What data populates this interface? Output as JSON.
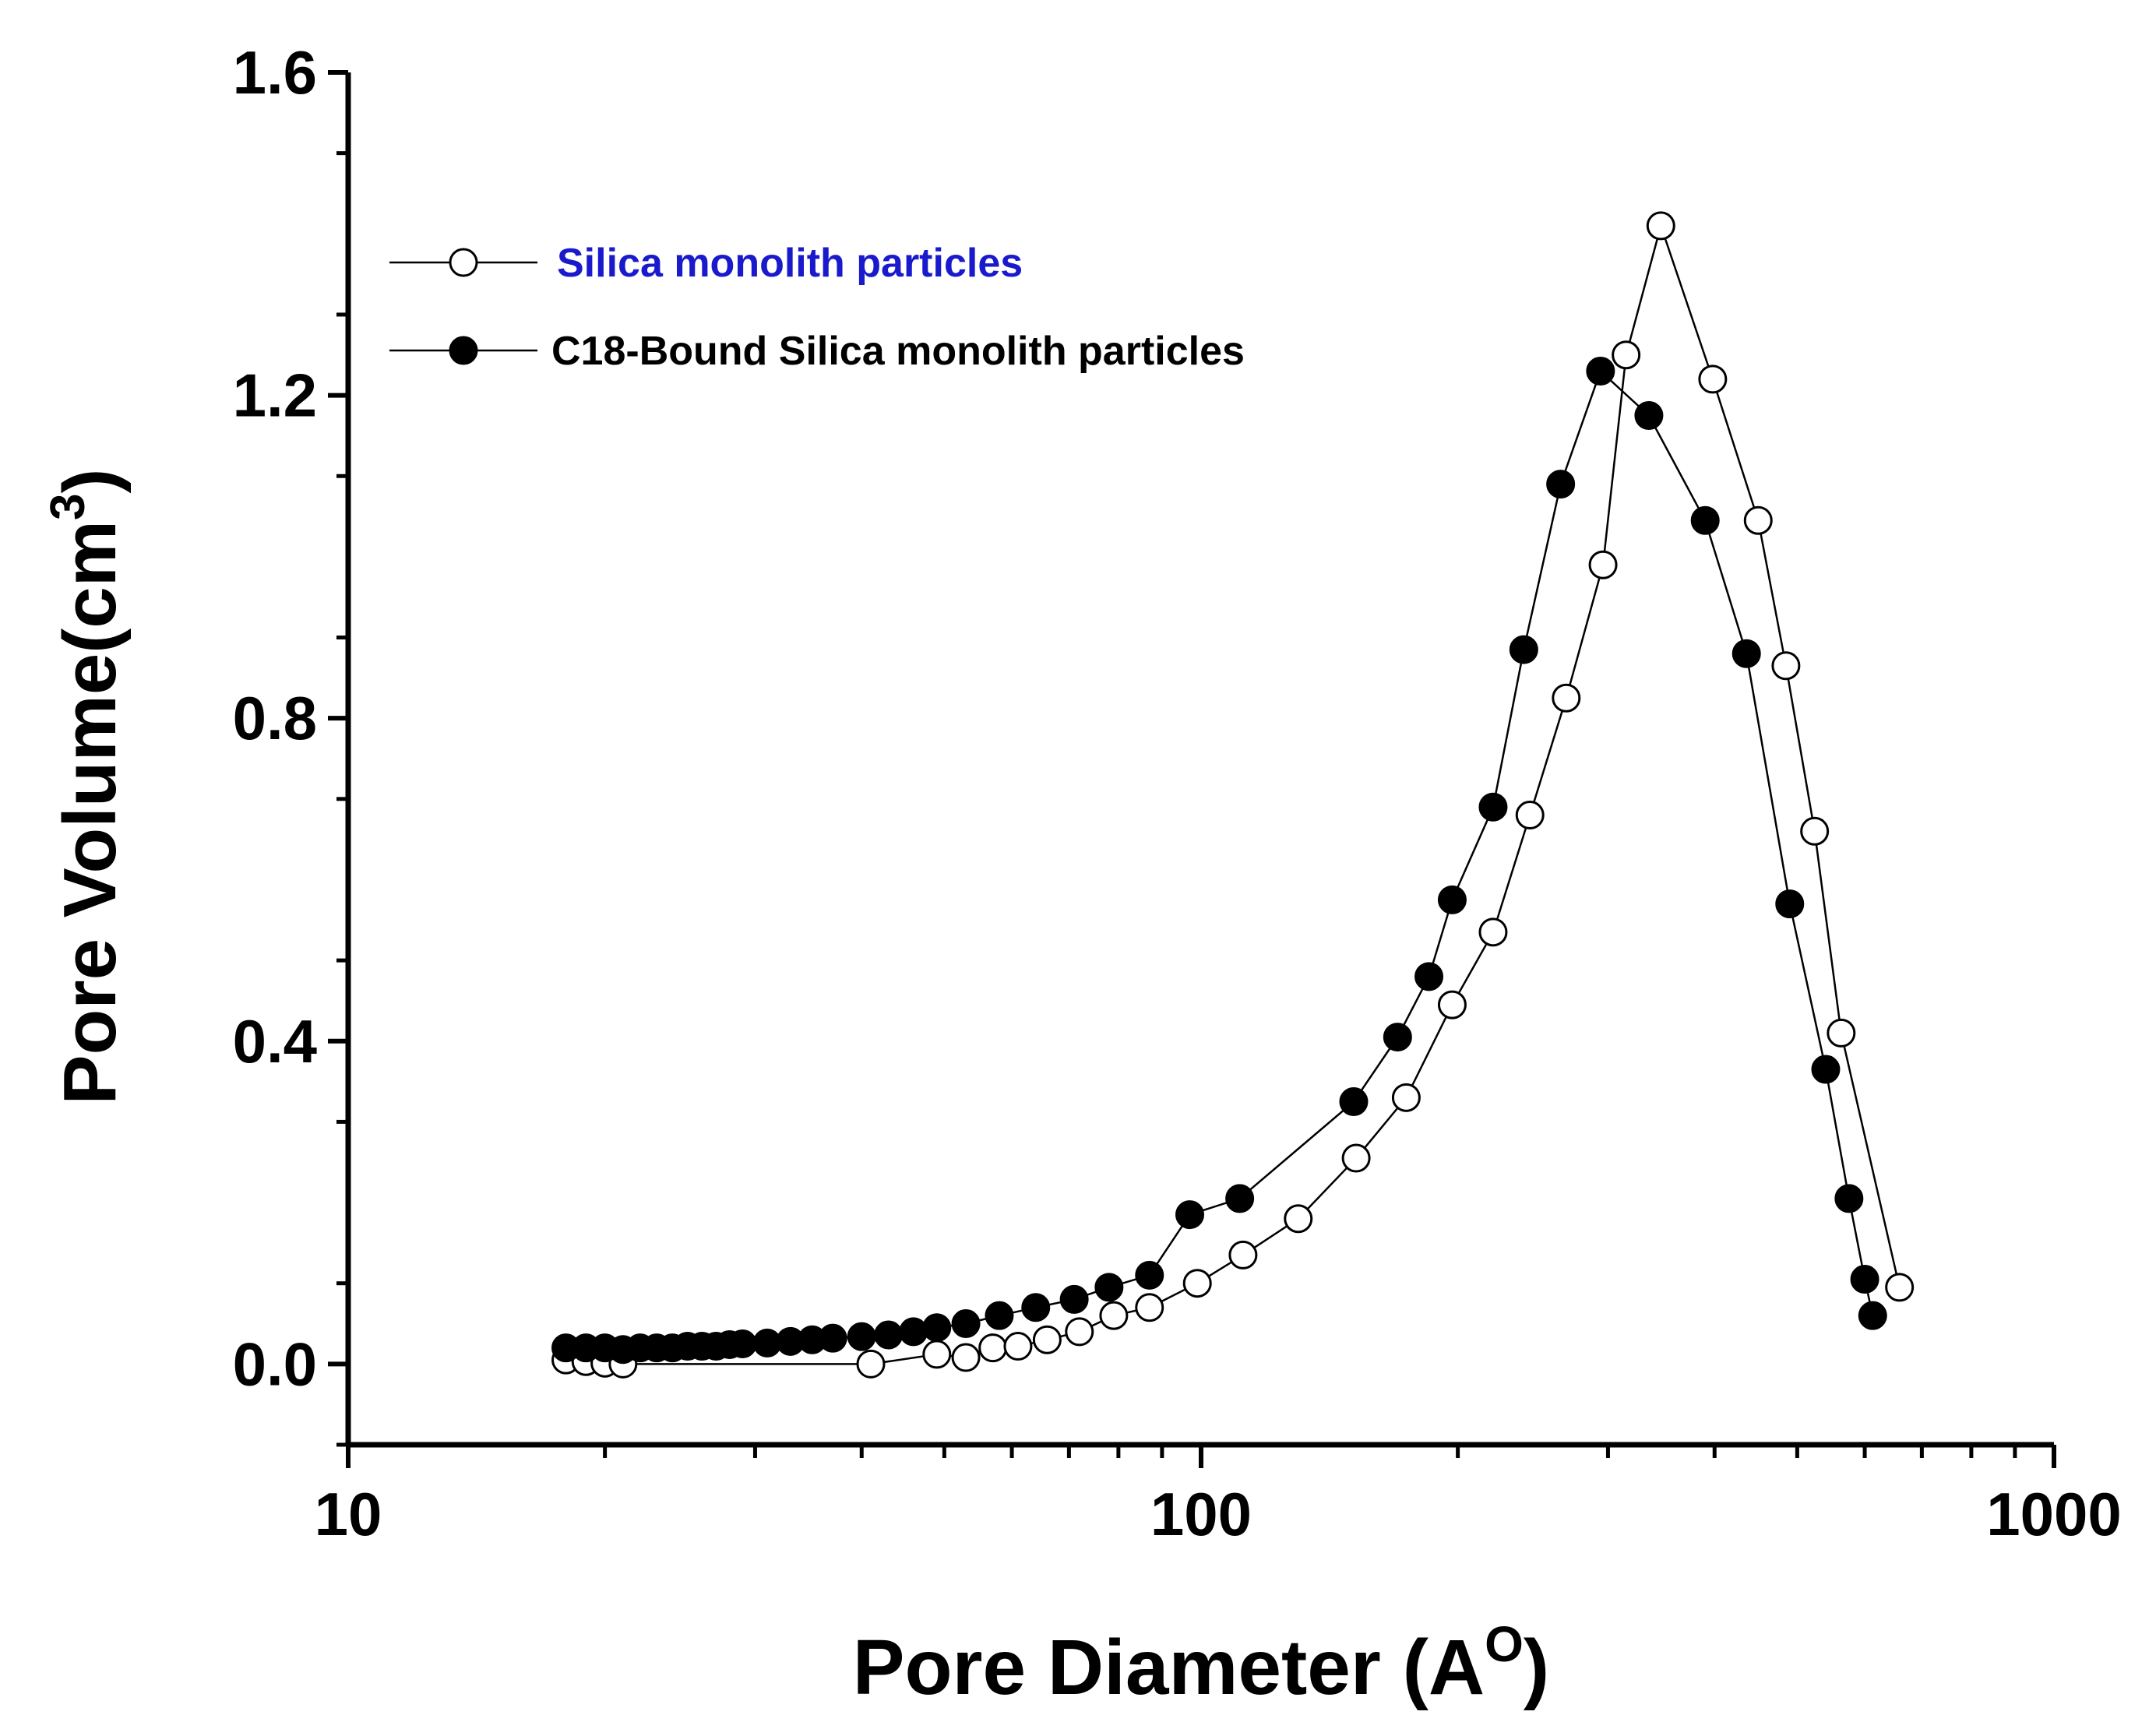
{
  "chart_data": {
    "type": "scatter",
    "xscale": "log",
    "xlim": [
      10,
      1000
    ],
    "ylim": [
      -0.1,
      1.6
    ],
    "xticks": [
      10,
      100,
      1000
    ],
    "xtick_labels": [
      "10",
      "100",
      "1000"
    ],
    "yticks": [
      0.0,
      0.4,
      0.8,
      1.2,
      1.6
    ],
    "ytick_labels": [
      "0.0",
      "0.4",
      "0.8",
      "1.2",
      "1.6"
    ],
    "xlabel": {
      "text": "Pore Diameter (A",
      "sup": "O",
      "close": ")"
    },
    "ylabel": {
      "text": "Pore Volume(cm",
      "sup": "3",
      "close": ")"
    },
    "legend_position": "top-left",
    "series": [
      {
        "name": "Silica monolith particles",
        "marker": "open-circle",
        "label_color": "#1a1acd",
        "x": [
          18,
          19,
          20,
          21,
          41,
          49,
          53,
          57,
          61,
          66,
          72,
          79,
          87,
          99,
          112,
          130,
          152,
          174,
          197,
          220,
          243,
          268,
          296,
          315,
          346,
          398,
          450,
          485,
          524,
          563,
          659
        ],
        "y": [
          0.005,
          0.003,
          0.001,
          0.0,
          0.0,
          0.012,
          0.008,
          0.02,
          0.022,
          0.03,
          0.04,
          0.06,
          0.07,
          0.1,
          0.135,
          0.18,
          0.255,
          0.33,
          0.445,
          0.535,
          0.68,
          0.825,
          0.99,
          1.25,
          1.41,
          1.22,
          1.045,
          0.865,
          0.66,
          0.41,
          0.095
        ]
      },
      {
        "name": "C18-Bound Silica monolith particles",
        "marker": "filled-circle",
        "label_color": "#000000",
        "x": [
          18,
          19,
          20,
          21,
          22,
          23,
          24,
          25,
          26,
          27,
          28,
          29,
          31,
          33,
          35,
          37,
          40,
          43,
          46,
          49,
          53,
          58,
          64,
          71,
          78,
          87,
          97,
          111,
          151,
          170,
          185,
          197,
          220,
          239,
          264,
          294,
          335,
          390,
          436,
          490,
          540,
          575,
          600,
          613
        ],
        "y": [
          0.02,
          0.02,
          0.02,
          0.018,
          0.02,
          0.02,
          0.02,
          0.022,
          0.022,
          0.022,
          0.024,
          0.025,
          0.026,
          0.028,
          0.03,
          0.032,
          0.034,
          0.036,
          0.04,
          0.045,
          0.05,
          0.06,
          0.07,
          0.08,
          0.095,
          0.11,
          0.185,
          0.205,
          0.325,
          0.405,
          0.48,
          0.575,
          0.69,
          0.885,
          1.09,
          1.23,
          1.175,
          1.045,
          0.88,
          0.57,
          0.365,
          0.205,
          0.105,
          0.06
        ]
      }
    ]
  }
}
